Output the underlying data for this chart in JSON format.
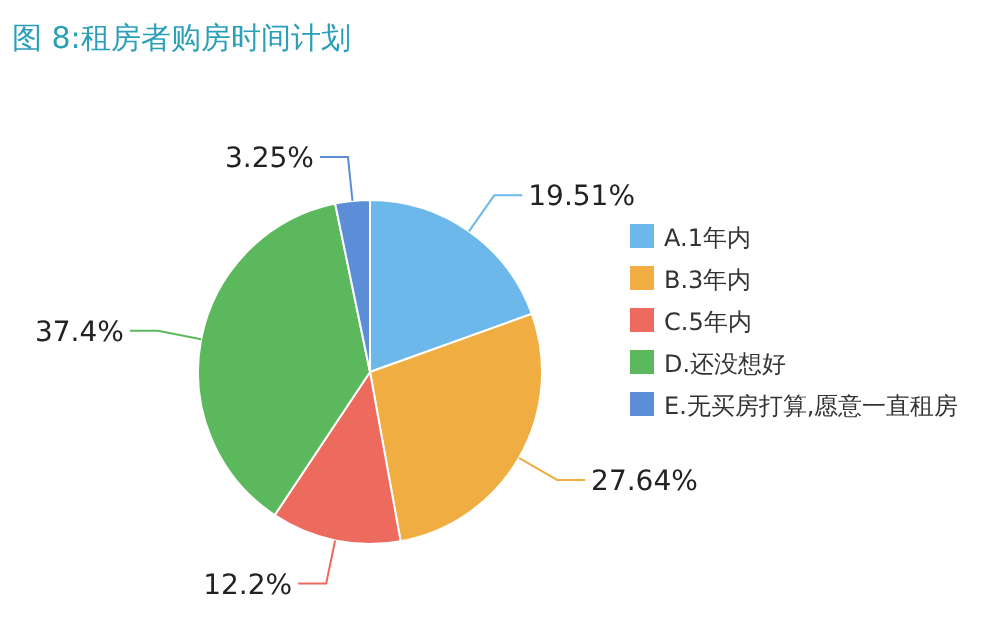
{
  "chart_data": {
    "type": "pie",
    "title": "图 8:租房者购房时间计划",
    "categories": [
      "A.1年内",
      "B.3年内",
      "C.5年内",
      "D.还没想好",
      "E.无买房打算,愿意一直租房"
    ],
    "values": [
      19.51,
      27.64,
      12.2,
      37.4,
      3.25
    ],
    "value_labels": [
      "19.51%",
      "27.64%",
      "12.2%",
      "37.4%",
      "3.25%"
    ],
    "colors": [
      "#6cb8ea",
      "#f0ad42",
      "#ec6a5e",
      "#5cb85c",
      "#5b8ed6"
    ],
    "legend": "right"
  }
}
